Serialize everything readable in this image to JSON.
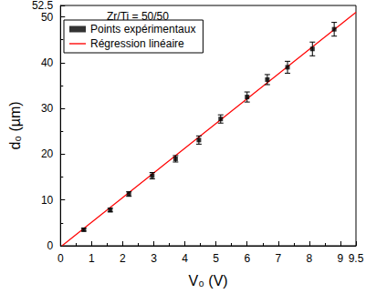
{
  "chart_data": {
    "type": "scatter",
    "annotation": "Zr/Ti = 50/50",
    "x_label": "V₀ (V)",
    "y_label": "d₀ (µm)",
    "xlim": [
      0,
      9.5
    ],
    "xticks": [
      0,
      1,
      2,
      3,
      4,
      5,
      6,
      7,
      8,
      9
    ],
    "ylim": [
      0,
      52.5
    ],
    "yticks": [
      0,
      10,
      20,
      30,
      40,
      50
    ],
    "grid": false,
    "legend": "upper left",
    "series": [
      {
        "name": "Points expérimentaux",
        "type": "scatter",
        "color": "#000000",
        "marker": "square",
        "x": [
          0.75,
          1.6,
          2.2,
          2.95,
          3.7,
          4.45,
          5.15,
          6.0,
          6.65,
          7.3,
          8.1,
          8.8
        ],
        "values": [
          3.5,
          7.8,
          11.3,
          15.3,
          19.0,
          23.1,
          27.7,
          32.5,
          36.3,
          39.0,
          43.0,
          47.3
        ],
        "errors": [
          0.3,
          0.4,
          0.5,
          0.7,
          0.7,
          0.9,
          0.9,
          1.1,
          1.1,
          1.3,
          1.5,
          1.5
        ]
      },
      {
        "name": "Régression linéaire",
        "type": "line",
        "color": "#ff0000",
        "line_style": "solid",
        "x": [
          0.05,
          9.5
        ],
        "values": [
          0,
          51.0
        ]
      }
    ]
  }
}
